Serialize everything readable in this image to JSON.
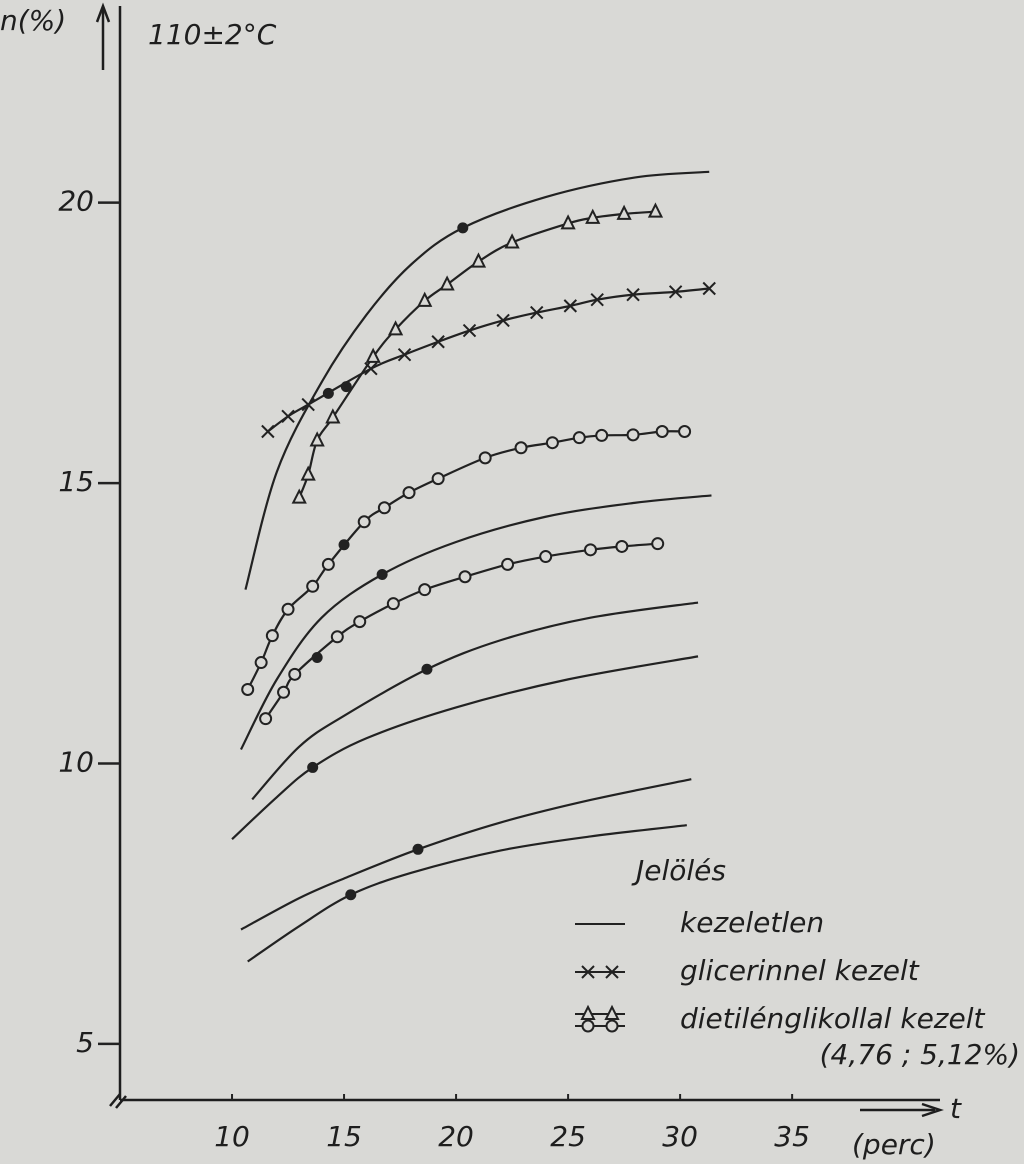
{
  "chart_data": {
    "type": "line",
    "y_label": "n(%)",
    "annotation": "110±2°C",
    "x_label": "t",
    "x_unit": "(perc)",
    "xlim": [
      5,
      41.6
    ],
    "ylim": [
      4,
      23.4
    ],
    "xticks": [
      10,
      15,
      20,
      25,
      30,
      35
    ],
    "yticks": [
      5,
      10,
      15,
      20
    ],
    "color": "#222222",
    "series": [
      {
        "marker": "none",
        "line": true,
        "x": [
          10.6,
          12,
          14,
          16,
          18,
          20.3,
          24,
          28,
          31.3
        ],
        "values": [
          13.1,
          15.2,
          16.8,
          18.0,
          18.9,
          19.55,
          20.1,
          20.45,
          20.55
        ]
      },
      {
        "marker": "none",
        "line": true,
        "x": [
          10.4,
          12,
          14,
          16.7,
          20,
          24,
          28,
          31.4
        ],
        "values": [
          10.25,
          11.5,
          12.6,
          13.37,
          13.95,
          14.4,
          14.65,
          14.78
        ]
      },
      {
        "marker": "none",
        "line": true,
        "x": [
          10.9,
          13,
          15,
          18.7,
          22,
          26,
          30.8
        ],
        "values": [
          9.36,
          10.3,
          10.85,
          11.68,
          12.2,
          12.6,
          12.87
        ]
      },
      {
        "marker": "none",
        "line": true,
        "x": [
          10,
          12,
          13.6,
          16,
          20,
          25,
          30.8
        ],
        "values": [
          8.65,
          9.4,
          9.93,
          10.45,
          11.0,
          11.5,
          11.91
        ]
      },
      {
        "marker": "none",
        "line": true,
        "x": [
          10.4,
          13,
          15,
          18.3,
          22,
          26,
          30.5
        ],
        "values": [
          7.04,
          7.6,
          7.95,
          8.47,
          8.95,
          9.35,
          9.72
        ]
      },
      {
        "marker": "none",
        "line": true,
        "x": [
          10.7,
          13,
          15.3,
          18,
          22,
          26,
          30.3
        ],
        "values": [
          6.47,
          7.1,
          7.66,
          8.05,
          8.45,
          8.7,
          8.9
        ]
      },
      {
        "marker": "x",
        "line": true,
        "x": [
          11.6,
          12.5,
          13.4,
          16.2,
          17.7,
          19.2,
          20.6,
          22.1,
          23.6,
          25.1,
          26.3,
          27.9,
          29.8,
          31.3
        ],
        "values": [
          15.92,
          16.19,
          16.4,
          17.04,
          17.29,
          17.52,
          17.72,
          17.9,
          18.04,
          18.16,
          18.27,
          18.36,
          18.41,
          18.47
        ]
      },
      {
        "marker": "triangle",
        "line": true,
        "x": [
          13.0,
          13.4,
          13.8,
          14.5,
          16.3,
          17.3,
          18.6,
          19.6,
          21.0,
          22.5,
          25.0,
          26.1,
          27.5,
          28.9
        ],
        "values": [
          14.74,
          15.15,
          15.76,
          16.17,
          17.25,
          17.74,
          18.25,
          18.54,
          18.95,
          19.29,
          19.63,
          19.73,
          19.8,
          19.84
        ]
      },
      {
        "marker": "circle",
        "line": true,
        "x": [
          10.7,
          11.3,
          11.8,
          12.5,
          13.6,
          14.3,
          15.9,
          16.8,
          17.9,
          19.2,
          21.3,
          22.9,
          24.3,
          25.5,
          26.5,
          27.9,
          29.2,
          30.2
        ],
        "values": [
          11.32,
          11.8,
          12.28,
          12.75,
          13.16,
          13.55,
          14.31,
          14.56,
          14.83,
          15.08,
          15.45,
          15.63,
          15.72,
          15.81,
          15.85,
          15.86,
          15.92,
          15.92
        ]
      },
      {
        "marker": "circle",
        "line": true,
        "x": [
          11.5,
          12.3,
          12.8,
          14.7,
          15.7,
          17.2,
          18.6,
          20.4,
          22.3,
          24.0,
          26.0,
          27.4,
          29.0
        ],
        "values": [
          10.8,
          11.27,
          11.59,
          12.26,
          12.53,
          12.85,
          13.1,
          13.33,
          13.55,
          13.69,
          13.81,
          13.87,
          13.92
        ]
      },
      {
        "marker": "dot",
        "line": false,
        "x": [
          14.3,
          15.1,
          20.3,
          15.0,
          13.8,
          16.7,
          18.7,
          13.6,
          18.3,
          15.3
        ],
        "values": [
          16.6,
          16.72,
          19.55,
          13.9,
          11.89,
          13.37,
          11.68,
          9.93,
          8.47,
          7.66
        ]
      }
    ],
    "legend": {
      "title": "Jelölés",
      "note": "(4,76 ; 5,12%)",
      "entries": [
        {
          "label": "kezeletlen",
          "markers": [
            "none"
          ]
        },
        {
          "label": "glicerinnel kezelt",
          "markers": [
            "x"
          ]
        },
        {
          "label": "dietilénglikollal kezelt",
          "markers": [
            "triangle",
            "circle"
          ]
        }
      ]
    }
  }
}
